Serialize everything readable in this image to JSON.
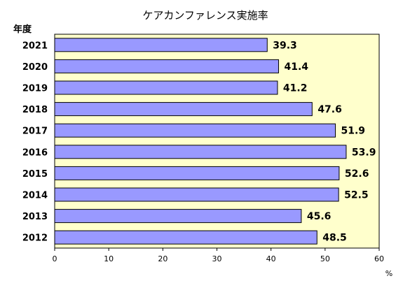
{
  "chart_data": {
    "type": "bar",
    "orientation": "horizontal",
    "title": "ケアカンファレンス実施率",
    "ylabel": "年度",
    "xunit": "%",
    "categories": [
      "2021",
      "2020",
      "2019",
      "2018",
      "2017",
      "2016",
      "2015",
      "2014",
      "2013",
      "2012"
    ],
    "values": [
      39.3,
      41.4,
      41.2,
      47.6,
      51.9,
      53.9,
      52.6,
      52.5,
      45.6,
      48.5
    ],
    "xlim": [
      0,
      60
    ],
    "xticks": [
      0,
      10,
      20,
      30,
      40,
      50,
      60
    ],
    "grid": false,
    "colors": {
      "bar_fill": "#9999ff",
      "bar_stroke": "#000000",
      "plot_background": "#ffffcc"
    }
  }
}
